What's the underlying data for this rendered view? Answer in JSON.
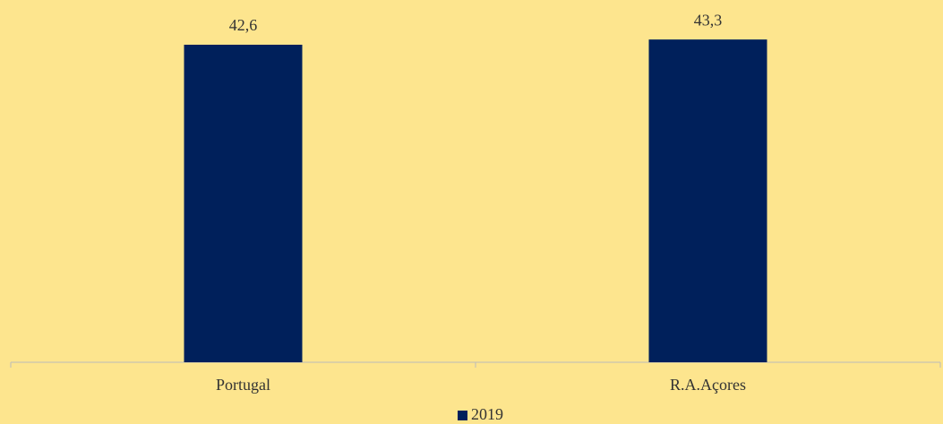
{
  "chart_data": {
    "type": "bar",
    "categories": [
      "Portugal",
      "R.A.Açores"
    ],
    "series": [
      {
        "name": "2019",
        "color": "#00205b",
        "values": [
          42.6,
          43.3
        ],
        "value_labels": [
          "42,6",
          "43,3"
        ]
      }
    ],
    "ylim": [
      0,
      45
    ]
  }
}
